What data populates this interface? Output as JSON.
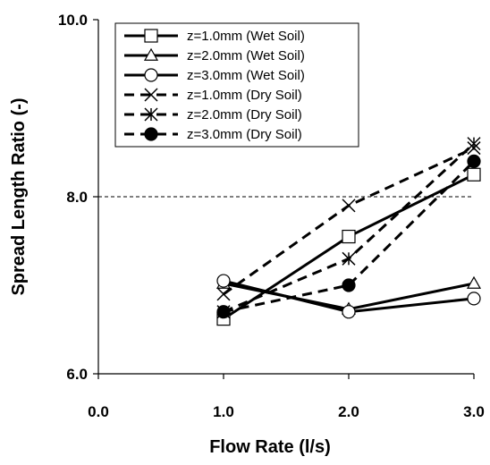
{
  "chart_data": {
    "type": "line",
    "xlabel": "Flow Rate (l/s)",
    "ylabel": "Spread Length Ratio (-)",
    "xlim": [
      0,
      3
    ],
    "ylim": [
      6,
      10
    ],
    "x_ticks": [
      "0.0",
      "1.0",
      "2.0",
      "3.0"
    ],
    "y_ticks": [
      "6.0",
      "8.0",
      "10.0"
    ],
    "reference_line": {
      "y": 8.0,
      "style": "dashed"
    },
    "grid": false,
    "legend_position": "top-right",
    "series": [
      {
        "name": "z=1.0mm (Wet Soil)",
        "marker": "square-open",
        "line": "solid",
        "x": [
          1.0,
          2.0,
          3.0
        ],
        "y": [
          6.62,
          7.55,
          8.25
        ]
      },
      {
        "name": "z=2.0mm (Wet Soil)",
        "marker": "triangle-open",
        "line": "solid",
        "x": [
          1.0,
          2.0,
          3.0
        ],
        "y": [
          7.02,
          6.73,
          7.02
        ]
      },
      {
        "name": "z=3.0mm (Wet Soil)",
        "marker": "circle-open",
        "line": "solid",
        "x": [
          1.0,
          2.0,
          3.0
        ],
        "y": [
          7.05,
          6.7,
          6.85
        ]
      },
      {
        "name": "z=1.0mm (Dry Soil)",
        "marker": "x",
        "line": "dashed",
        "x": [
          1.0,
          2.0,
          3.0
        ],
        "y": [
          6.9,
          7.9,
          8.55
        ]
      },
      {
        "name": "z=2.0mm (Dry Soil)",
        "marker": "asterisk",
        "line": "dashed",
        "x": [
          1.0,
          2.0,
          3.0
        ],
        "y": [
          6.7,
          7.3,
          8.6
        ]
      },
      {
        "name": "z=3.0mm (Dry Soil)",
        "marker": "circle-filled",
        "line": "dashed",
        "x": [
          1.0,
          2.0,
          3.0
        ],
        "y": [
          6.7,
          7.0,
          8.4
        ]
      }
    ]
  }
}
